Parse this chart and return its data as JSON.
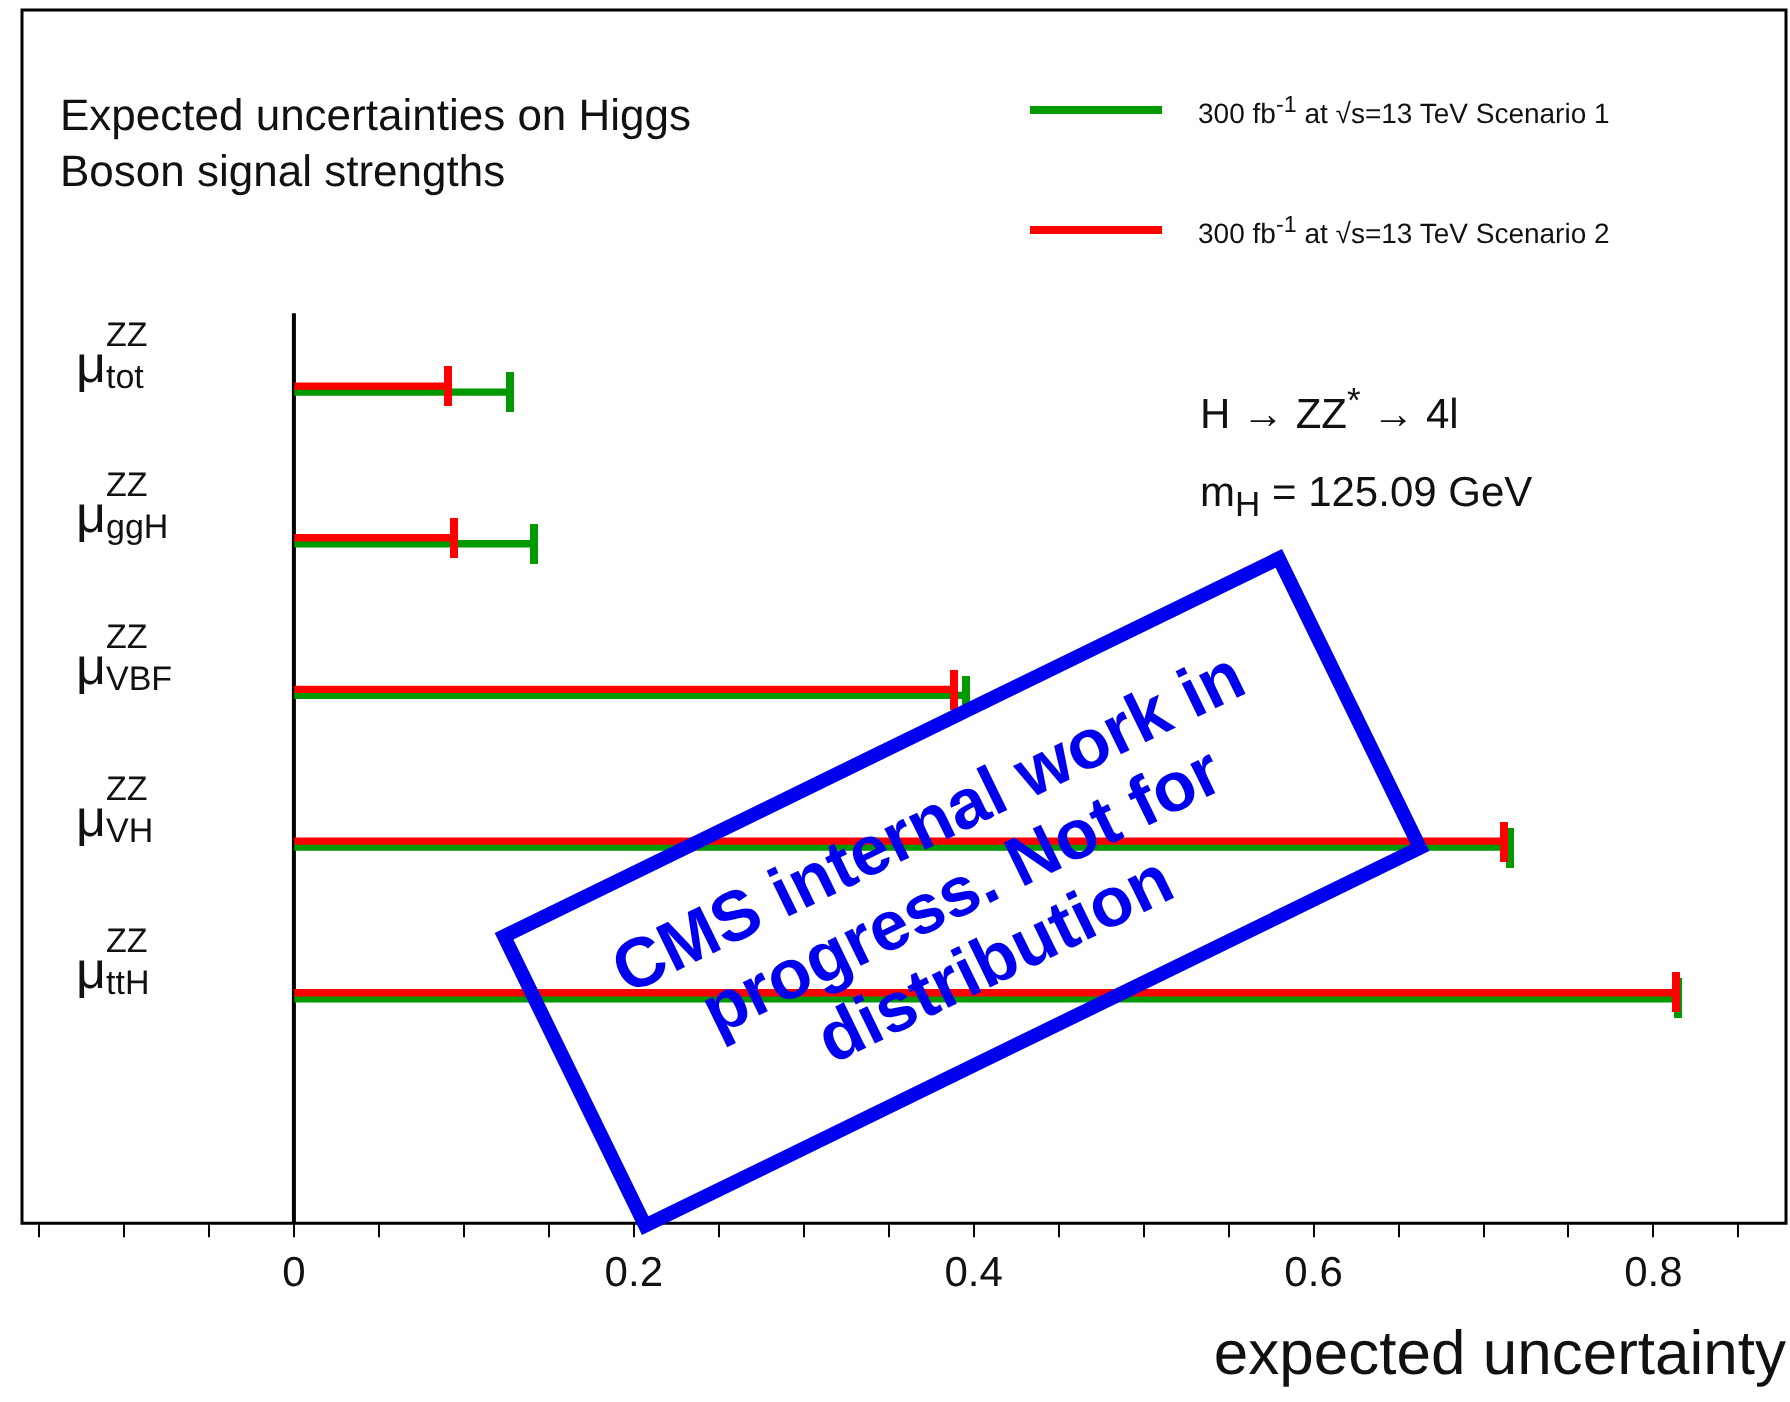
{
  "chart_data": {
    "type": "bar",
    "orientation": "horizontal",
    "title": "Expected uncertainties on Higgs Boson signal strengths",
    "xlabel": "expected uncertainty",
    "categories": [
      "μ$^{ZZ}$$_{tot}$",
      "μ$^{ZZ}$$_{ggH}$",
      "μ$^{ZZ}$$_{VBF}$",
      "μ$^{ZZ}$$_{VH}$",
      "μ$^{ZZ}$$_{ttH}$"
    ],
    "series": [
      {
        "name": "300 fb$^{-1}$ at √s=13 TeV Scenario 1",
        "color": "#009900",
        "values": [
          0.127,
          0.141,
          0.395,
          0.716,
          0.815
        ]
      },
      {
        "name": "300 fb$^{-1}$ at √s=13 TeV Scenario 2",
        "color": "#ff0000",
        "values": [
          0.091,
          0.094,
          0.389,
          0.712,
          0.813
        ]
      }
    ],
    "xlim": [
      -0.16,
      0.878
    ],
    "xticks": [
      {
        "value": -0.15,
        "label": null
      },
      {
        "value": -0.1,
        "label": null
      },
      {
        "value": -0.05,
        "label": null
      },
      0,
      {
        "value": 0.05,
        "label": null
      },
      {
        "value": 0.1,
        "label": null
      },
      {
        "value": 0.15,
        "label": null
      },
      0.2,
      {
        "value": 0.25,
        "label": null
      },
      {
        "value": 0.3,
        "label": null
      },
      {
        "value": 0.35,
        "label": null
      },
      0.4,
      {
        "value": 0.45,
        "label": null
      },
      {
        "value": 0.5,
        "label": null
      },
      {
        "value": 0.55,
        "label": null
      },
      0.6,
      {
        "value": 0.65,
        "label": null
      },
      {
        "value": 0.7,
        "label": null
      },
      {
        "value": 0.75,
        "label": null
      },
      0.8,
      {
        "value": 0.85,
        "label": null
      }
    ],
    "ref_lines": [
      {
        "axis": "x",
        "value": 0,
        "color": "#000000"
      }
    ],
    "legend": "top right",
    "annotations": [
      "H → ZZ$^{*}$ → 4l",
      "m$_{H}$ = 125.09 GeV",
      "CMS internal work in progress. Not for distribution"
    ]
  }
}
